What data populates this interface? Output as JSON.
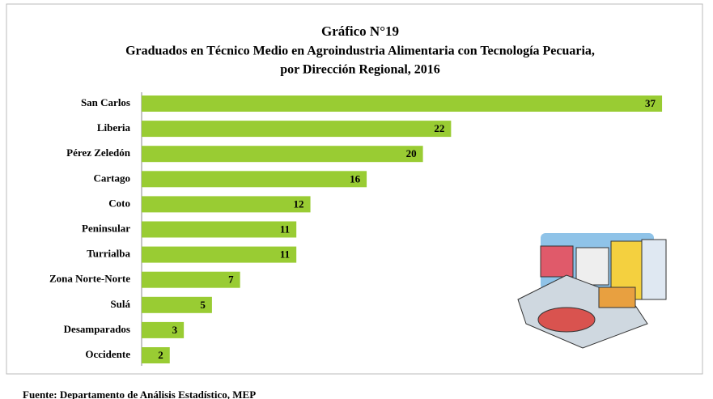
{
  "chart_data": {
    "type": "bar",
    "orientation": "horizontal",
    "title": "Gráfico N°19",
    "subtitle": [
      "Graduados en Técnico Medio en Agroindustria Alimentaria con Tecnología Pecuaria,",
      "por Dirección Regional, 2016"
    ],
    "categories": [
      "San Carlos",
      "Liberia",
      "Pérez Zeledón",
      "Cartago",
      "Coto",
      "Peninsular",
      "Turrialba",
      "Zona Norte-Norte",
      "Sulá",
      "Desamparados",
      "Occidente"
    ],
    "values": [
      37,
      22,
      20,
      16,
      12,
      11,
      11,
      7,
      5,
      3,
      2
    ],
    "color": "#99cc33",
    "source": "Fuente: Departamento de Análisis Estadístico, MEP"
  }
}
